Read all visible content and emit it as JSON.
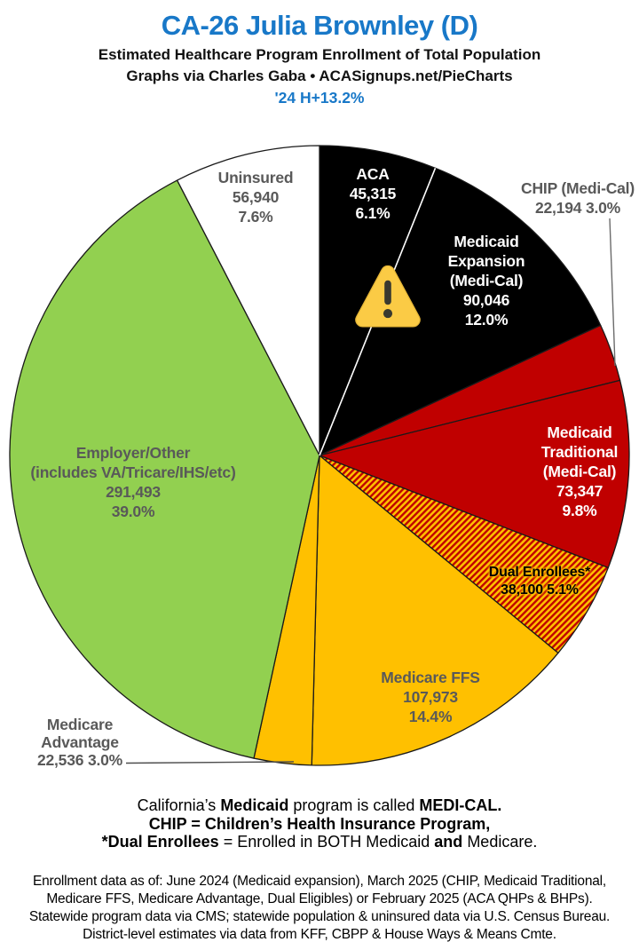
{
  "header": {
    "title": "CA-26 Julia Brownley (D)",
    "subtitle": "Estimated Healthcare Program Enrollment of Total Population",
    "credit": "Graphs via Charles Gaba   •   ACASignups.net/PieCharts",
    "margin": "'24 H+13.2%"
  },
  "colors": {
    "title_blue": "#1878C8",
    "label_gray": "#595959",
    "slice_black": "#000000",
    "slice_red": "#C00000",
    "slice_gold": "#FFC000",
    "slice_green": "#92D050",
    "slice_white": "#FFFFFF"
  },
  "icons": {
    "warning": "warning-icon"
  },
  "chart_data": {
    "type": "pie",
    "title": "Estimated Healthcare Program Enrollment of Total Population",
    "start_angle_deg": 0,
    "direction": "clockwise",
    "slices": [
      {
        "key": "aca",
        "name": "ACA",
        "value": 45315,
        "pct": 6.1,
        "value_text": "45,315",
        "pct_text": "6.1%",
        "fill": "#000000",
        "label_lines": [
          "ACA",
          "45,315",
          "6.1%"
        ]
      },
      {
        "key": "medicaid-expansion",
        "name": "Medicaid Expansion (Medi-Cal)",
        "value": 90046,
        "pct": 12.0,
        "value_text": "90,046",
        "pct_text": "12.0%",
        "fill": "#000000",
        "label_lines": [
          "Medicaid",
          "Expansion",
          "(Medi-Cal)",
          "90,046",
          "12.0%"
        ]
      },
      {
        "key": "chip",
        "name": "CHIP (Medi-Cal)",
        "value": 22194,
        "pct": 3.0,
        "value_text": "22,194",
        "pct_text": "3.0%",
        "fill": "#C00000",
        "label_lines": [
          "CHIP (Medi-Cal)",
          "22,194 3.0%"
        ]
      },
      {
        "key": "medicaid-traditional",
        "name": "Medicaid Traditional (Medi-Cal)",
        "value": 73347,
        "pct": 9.8,
        "value_text": "73,347",
        "pct_text": "9.8%",
        "fill": "#C00000",
        "label_lines": [
          "Medicaid",
          "Traditional",
          "(Medi-Cal)",
          "73,347",
          "9.8%"
        ]
      },
      {
        "key": "dual-enrollees",
        "name": "Dual Enrollees*",
        "value": 38100,
        "pct": 5.1,
        "value_text": "38,100",
        "pct_text": "5.1%",
        "fill": "hatch",
        "label_lines": [
          "Dual Enrollees*",
          "38,100 5.1%"
        ]
      },
      {
        "key": "medicare-ffs",
        "name": "Medicare FFS",
        "value": 107973,
        "pct": 14.4,
        "value_text": "107,973",
        "pct_text": "14.4%",
        "fill": "#FFC000",
        "label_lines": [
          "Medicare FFS",
          "107,973",
          "14.4%"
        ]
      },
      {
        "key": "medicare-advantage",
        "name": "Medicare Advantage",
        "value": 22536,
        "pct": 3.0,
        "value_text": "22,536",
        "pct_text": "3.0%",
        "fill": "#FFC000",
        "label_lines": [
          "Medicare",
          "Advantage",
          "22,536 3.0%"
        ]
      },
      {
        "key": "employer-other",
        "name": "Employer/Other (includes VA/Tricare/IHS/etc)",
        "value": 291493,
        "pct": 39.0,
        "value_text": "291,493",
        "pct_text": "39.0%",
        "fill": "#92D050",
        "label_lines": [
          "Employer/Other",
          "(includes VA/Tricare/IHS/etc)",
          "291,493",
          "39.0%"
        ]
      },
      {
        "key": "uninsured",
        "name": "Uninsured",
        "value": 56940,
        "pct": 7.6,
        "value_text": "56,940",
        "pct_text": "7.6%",
        "fill": "#FFFFFF",
        "label_lines": [
          "Uninsured",
          "56,940",
          "7.6%"
        ]
      }
    ]
  },
  "notes": {
    "line1": [
      "California’s ",
      "Medicaid",
      " program is called ",
      "MEDI-CAL."
    ],
    "line2": [
      "CHIP",
      " = ",
      "Children’s Health Insurance Program,"
    ],
    "line3": [
      "*Dual Enrollees",
      " = Enrolled in BOTH Medicaid ",
      "and",
      " Medicare."
    ]
  },
  "fineprint": {
    "line1": "Enrollment data as of: June 2024 (Medicaid expansion), March 2025 (CHIP, Medicaid Traditional,",
    "line2": "Medicare FFS, Medicare Advantage, Dual Eligibles) or February 2025 (ACA QHPs & BHPs).",
    "line3": "Statewide program data via CMS; statewide population & uninsured data via U.S. Census Bureau.",
    "line4": "District-level estimates via data from KFF, CBPP & House Ways & Means Cmte."
  }
}
